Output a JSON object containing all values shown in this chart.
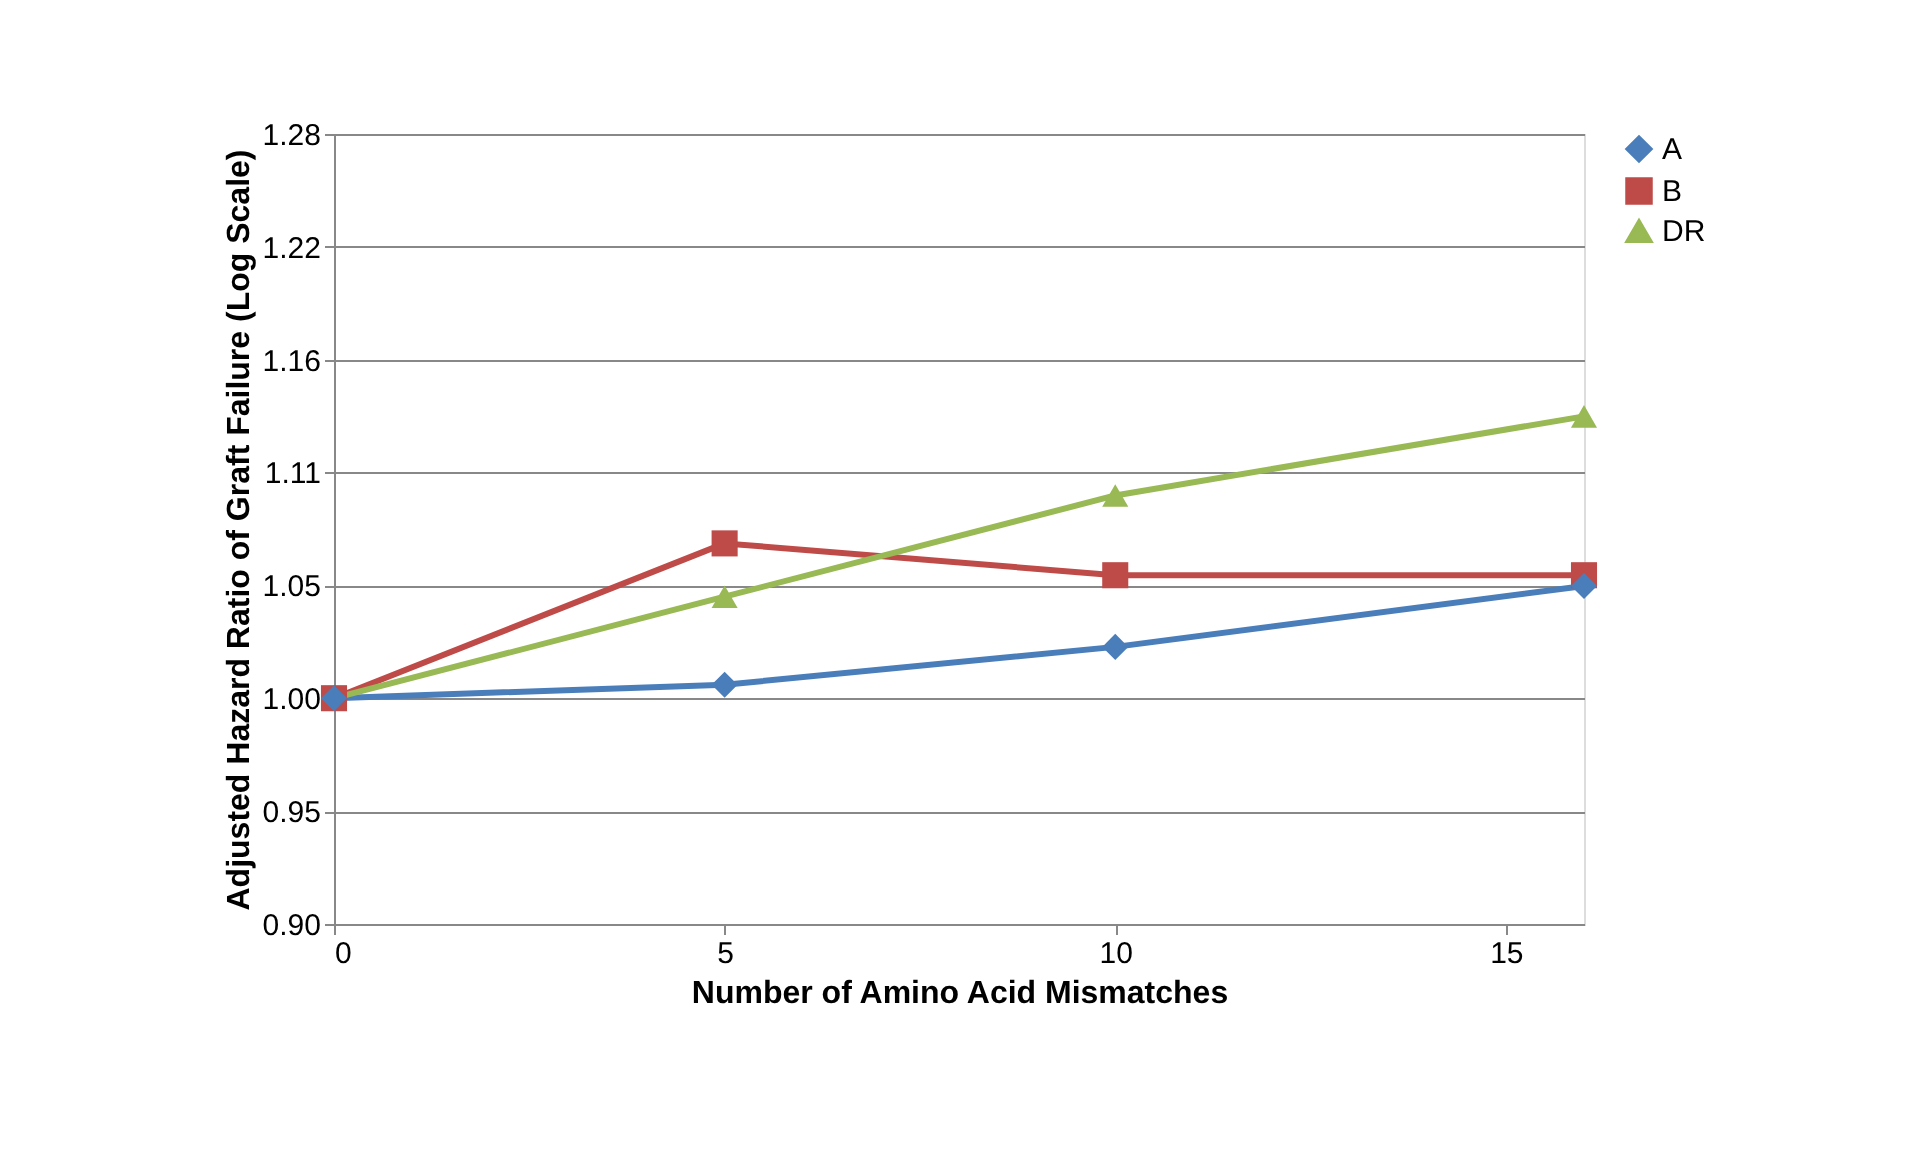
{
  "chart_data": {
    "type": "line",
    "xlabel": "Number of Amino Acid Mismatches",
    "ylabel": "Adjusted Hazard Ratio of Graft Failure (Log Scale)",
    "x": [
      0,
      5,
      10,
      16
    ],
    "xlim": [
      0,
      16
    ],
    "xticks": [
      0,
      5,
      10,
      15
    ],
    "ylim": [
      0.9048,
      1.284
    ],
    "log": "y",
    "yticks": [
      {
        "value": 0.9048,
        "label": "0.90"
      },
      {
        "value": 0.9512,
        "label": "0.95"
      },
      {
        "value": 1.0,
        "label": "1.00"
      },
      {
        "value": 1.0513,
        "label": "1.05"
      },
      {
        "value": 1.1052,
        "label": "1.11"
      },
      {
        "value": 1.1618,
        "label": "1.16"
      },
      {
        "value": 1.2214,
        "label": "1.22"
      },
      {
        "value": 1.284,
        "label": "1.28"
      }
    ],
    "grid": "y",
    "legend": "right",
    "series": [
      {
        "name": "A",
        "color": "#4a7ebb",
        "marker": "diamond",
        "values": [
          1.0,
          1.006,
          1.023,
          1.051
        ]
      },
      {
        "name": "B",
        "color": "#be4b48",
        "marker": "square",
        "values": [
          1.0,
          1.071,
          1.056,
          1.056
        ]
      },
      {
        "name": "DR",
        "color": "#98b954",
        "marker": "triangle",
        "values": [
          1.0,
          1.046,
          1.094,
          1.133
        ]
      }
    ]
  }
}
